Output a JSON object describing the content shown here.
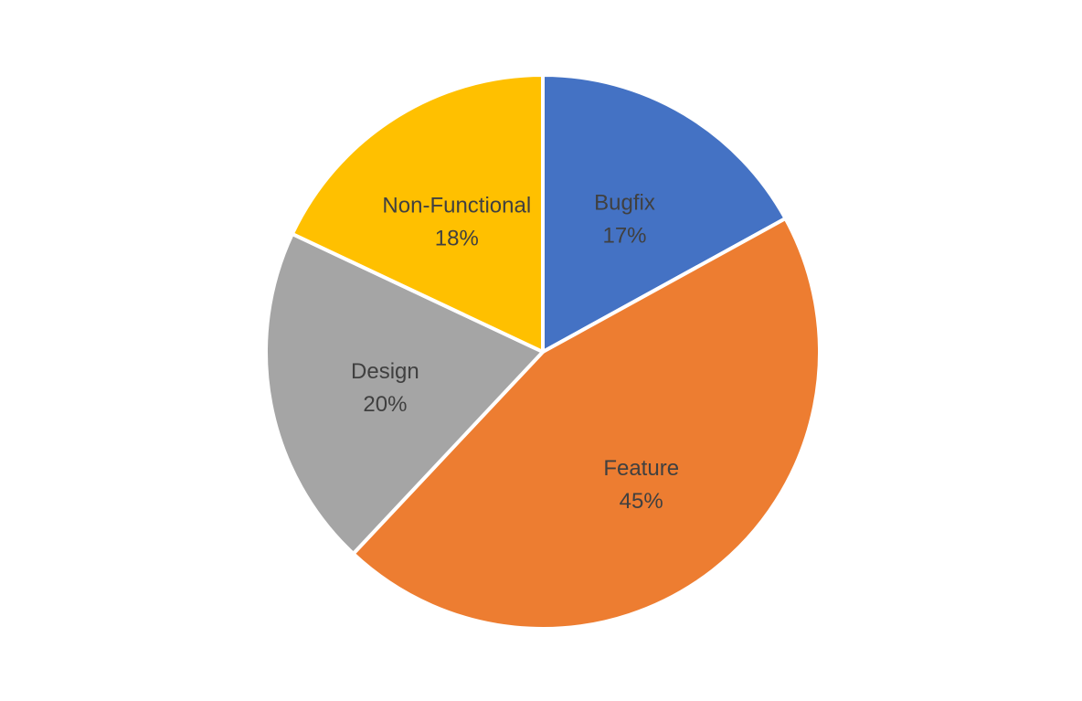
{
  "chart_data": {
    "type": "pie",
    "title": "",
    "legend": "none",
    "start_angle_deg": 0,
    "direction": "clockwise",
    "slices": [
      {
        "label": "Bugfix",
        "value": 17,
        "display": "17%",
        "color": "#4472C4"
      },
      {
        "label": "Feature",
        "value": 45,
        "display": "45%",
        "color": "#ED7D31"
      },
      {
        "label": "Design",
        "value": 20,
        "display": "20%",
        "color": "#A5A5A5"
      },
      {
        "label": "Non-Functional",
        "value": 18,
        "display": "18%",
        "color": "#FFC000"
      }
    ],
    "data_labels": "category-and-percent-inside"
  }
}
